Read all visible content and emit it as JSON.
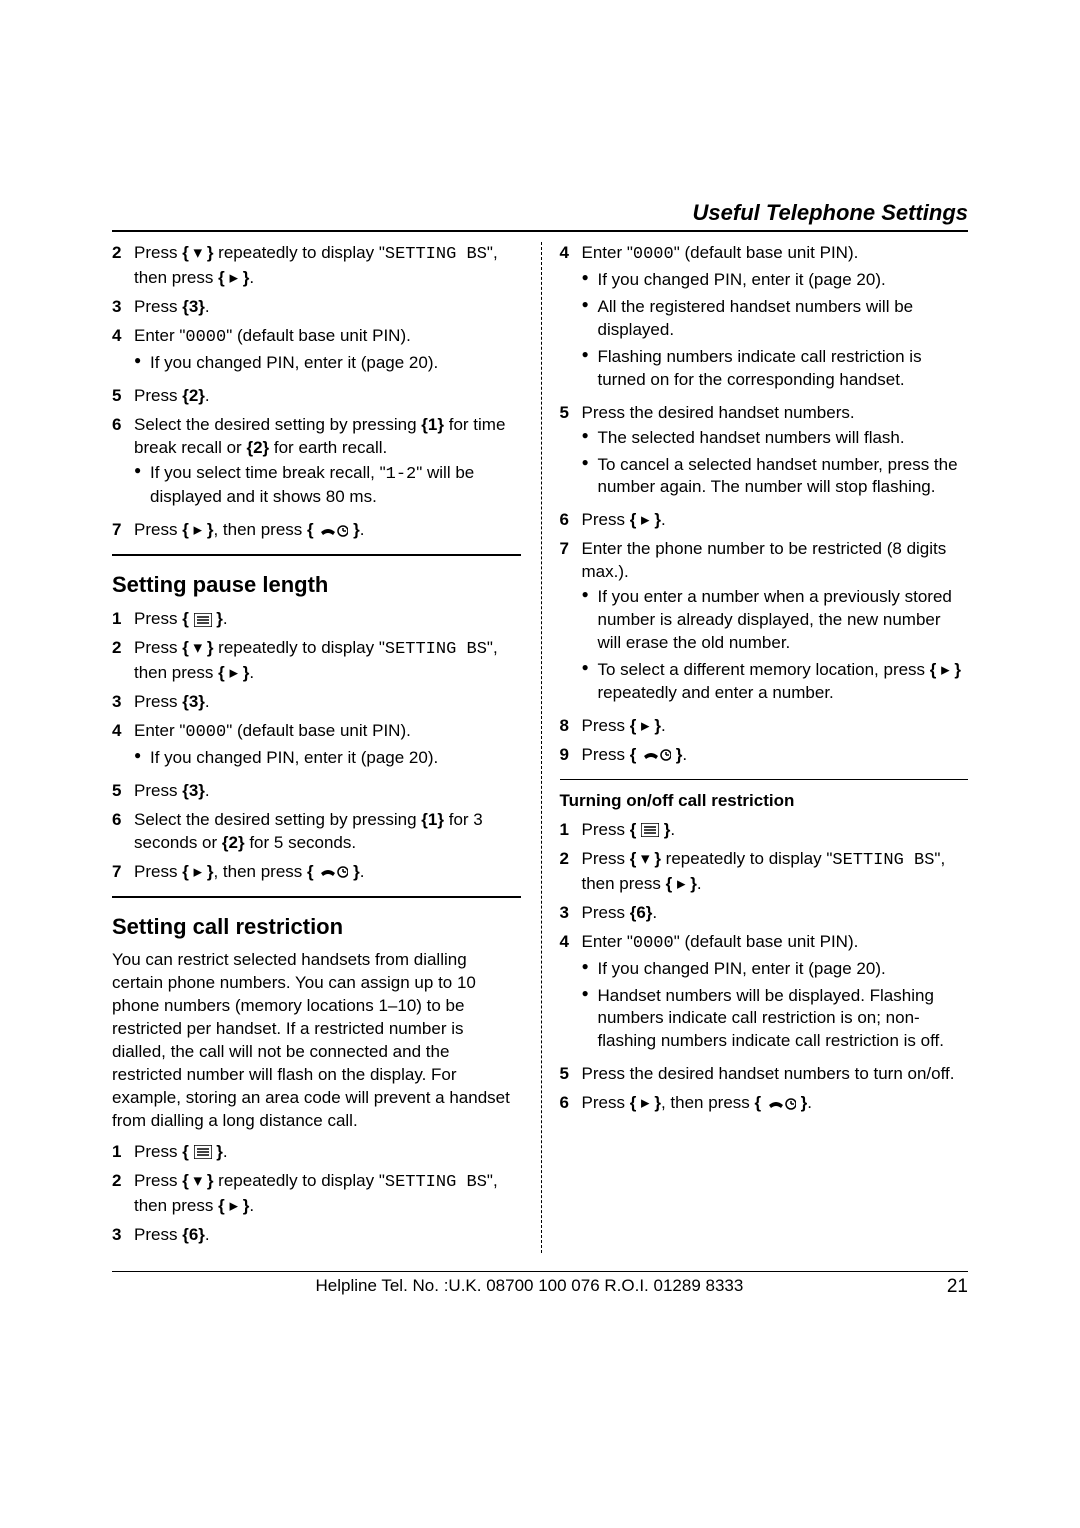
{
  "header": {
    "title": "Useful Telephone Settings"
  },
  "icons": {
    "down": "▾",
    "right": "▸",
    "menu_svg": true,
    "hangup_svg": true
  },
  "left": {
    "partA": [
      {
        "n": "2",
        "text_before": "Press ",
        "icon": "down",
        "text_mid": " repeatedly to display \"",
        "mono": "SETTING BS",
        "text_after": "\", then press ",
        "icon_end": "right",
        "tail": "."
      },
      {
        "n": "3",
        "plain_before": "Press ",
        "bracket_text": "3",
        "plain_after": "."
      },
      {
        "n": "4",
        "plain_before": "Enter \"",
        "mono": "0000",
        "plain_after": "\" (default base unit PIN).",
        "bullets": [
          "If you changed PIN, enter it (page 20)."
        ]
      },
      {
        "n": "5",
        "plain_before": "Press ",
        "bracket_text": "2",
        "plain_after": "."
      },
      {
        "n": "6",
        "text": "Select the desired setting by pressing {B1} for time break recall or {B2} for earth recall.",
        "b1": "1",
        "b2": "2",
        "bullets": [
          "If you select time break recall, \"{MONO}\" will be displayed and it shows 80 ms."
        ],
        "bullet_mono": "1-2"
      },
      {
        "n": "7",
        "text_before": "Press ",
        "icon": "right",
        "text_mid": ", then press ",
        "icon_end": "hangup",
        "tail": "."
      }
    ],
    "sectionB": {
      "title": "Setting pause length",
      "steps": [
        {
          "n": "1",
          "plain_before": "Press ",
          "icon_bracket": "menu",
          "plain_after": "."
        },
        {
          "n": "2",
          "text_before": "Press ",
          "icon": "down",
          "text_mid": " repeatedly to display \"",
          "mono": "SETTING BS",
          "text_after": "\", then press ",
          "icon_end": "right",
          "tail": "."
        },
        {
          "n": "3",
          "plain_before": "Press ",
          "bracket_text": "3",
          "plain_after": "."
        },
        {
          "n": "4",
          "plain_before": "Enter \"",
          "mono": "0000",
          "plain_after": "\" (default base unit PIN).",
          "bullets": [
            "If you changed PIN, enter it (page 20)."
          ]
        },
        {
          "n": "5",
          "plain_before": "Press ",
          "bracket_text": "3",
          "plain_after": "."
        },
        {
          "n": "6",
          "text": "Select the desired setting by pressing {B1} for 3 seconds or {B2} for 5 seconds.",
          "b1": "1",
          "b2": "2"
        },
        {
          "n": "7",
          "text_before": "Press ",
          "icon": "right",
          "text_mid": ", then press ",
          "icon_end": "hangup",
          "tail": "."
        }
      ]
    },
    "sectionC": {
      "title": "Setting call restriction",
      "para": "You can restrict selected handsets from dialling certain phone numbers. You can assign up to 10 phone numbers (memory locations 1–10) to be restricted per handset. If a restricted number is dialled, the call will not be connected and the restricted number will flash on the display. For example, storing an area code will prevent a handset from dialling a long distance call.",
      "steps": [
        {
          "n": "1",
          "plain_before": "Press ",
          "icon_bracket": "menu",
          "plain_after": "."
        },
        {
          "n": "2",
          "text_before": "Press ",
          "icon": "down",
          "text_mid": " repeatedly to display \"",
          "mono": "SETTING BS",
          "text_after": "\", then press ",
          "icon_end": "right",
          "tail": "."
        },
        {
          "n": "3",
          "plain_before": "Press ",
          "bracket_text": "6",
          "plain_after": "."
        }
      ]
    }
  },
  "right": {
    "steps": [
      {
        "n": "4",
        "plain_before": "Enter \"",
        "mono": "0000",
        "plain_after": "\" (default base unit PIN).",
        "bullets": [
          "If you changed PIN, enter it (page 20).",
          "All the registered handset numbers will be displayed.",
          "Flashing numbers indicate call restriction is turned on for the corresponding handset."
        ]
      },
      {
        "n": "5",
        "plain": "Press the desired handset numbers.",
        "bullets": [
          "The selected handset numbers will flash.",
          "To cancel a selected handset number, press the number again. The number will stop flashing."
        ]
      },
      {
        "n": "6",
        "plain_before": "Press ",
        "icon_bracket": "right",
        "plain_after": "."
      },
      {
        "n": "7",
        "plain": "Enter the phone number to be restricted (8 digits max.).",
        "bullets": [
          "If you enter a number when a previously stored number is already displayed, the new number will erase the old number.",
          "To select a different memory location, press {RIGHT} repeatedly and enter a number."
        ]
      },
      {
        "n": "8",
        "plain_before": "Press ",
        "icon_bracket": "right",
        "plain_after": "."
      },
      {
        "n": "9",
        "plain_before": "Press ",
        "icon_bracket": "hangup",
        "plain_after": "."
      }
    ],
    "sub": {
      "title": "Turning on/off call restriction",
      "steps": [
        {
          "n": "1",
          "plain_before": "Press ",
          "icon_bracket": "menu",
          "plain_after": "."
        },
        {
          "n": "2",
          "text_before": "Press ",
          "icon": "down",
          "text_mid": " repeatedly to display \"",
          "mono": "SETTING BS",
          "text_after": "\", then press ",
          "icon_end": "right",
          "tail": "."
        },
        {
          "n": "3",
          "plain_before": "Press ",
          "bracket_text": "6",
          "plain_after": "."
        },
        {
          "n": "4",
          "plain_before": "Enter \"",
          "mono": "0000",
          "plain_after": "\" (default base unit PIN).",
          "bullets": [
            "If you changed PIN, enter it (page 20).",
            "Handset numbers will be displayed. Flashing numbers indicate call restriction is on; non-flashing numbers indicate call restriction is off."
          ]
        },
        {
          "n": "5",
          "plain": "Press the desired handset numbers to turn on/off."
        },
        {
          "n": "6",
          "text_before": "Press ",
          "icon": "right",
          "text_mid": ", then press ",
          "icon_end": "hangup",
          "tail": "."
        }
      ]
    }
  },
  "footer": {
    "helpline": "Helpline Tel. No. :U.K. 08700 100 076  R.O.I. 01289 8333",
    "page": "21"
  }
}
